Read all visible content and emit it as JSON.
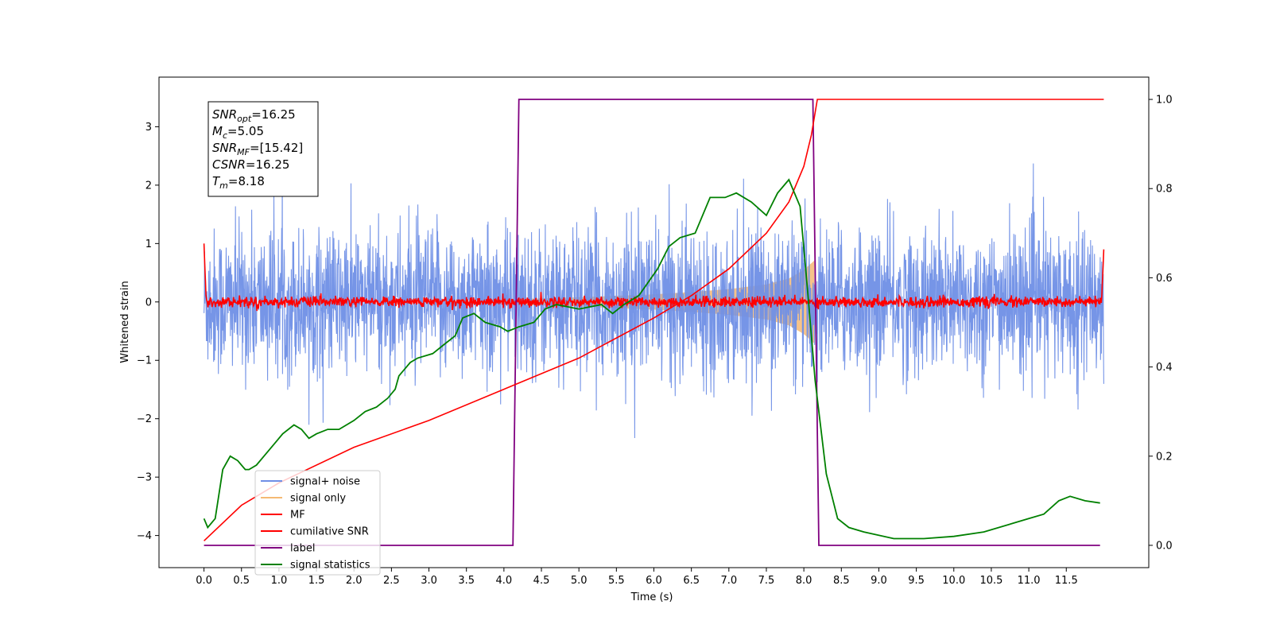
{
  "chart_data": {
    "type": "line",
    "title": "",
    "xlabel": "Time (s)",
    "ylabel": "Whitened strain",
    "xlim": [
      -0.6,
      12.6
    ],
    "ylim": [
      -4.55,
      3.85
    ],
    "y2lim": [
      -0.05,
      1.05
    ],
    "xticks": [
      "0.0",
      "0.5",
      "1.0",
      "1.5",
      "2.0",
      "2.5",
      "3.0",
      "3.5",
      "4.0",
      "4.5",
      "5.0",
      "5.5",
      "6.0",
      "6.5",
      "7.0",
      "7.5",
      "8.0",
      "8.5",
      "9.0",
      "9.5",
      "10.0",
      "10.5",
      "11.0",
      "11.5"
    ],
    "yticks": [
      "3",
      "2",
      "1",
      "0",
      "−1",
      "−2",
      "−3",
      "−4"
    ],
    "y2ticks": [
      "1.0",
      "0.8",
      "0.6",
      "0.4",
      "0.2",
      "0.0"
    ],
    "legend_position": "lower-left",
    "grid": false,
    "series": [
      {
        "name": "signal+ noise",
        "axis": "left",
        "color": "#6f8fe6",
        "description": "dense gaussian noise, std about 0.6, t 0.0 to 12.0, spikes to 3.5 and -4.1"
      },
      {
        "name": "signal only",
        "axis": "left",
        "color": "#f5b974",
        "description": "chirp band growing from 0.05 at 4.2 s to 0.7 at 8.15 s",
        "x": [
          4.2,
          5.0,
          6.0,
          6.5,
          7.0,
          7.5,
          7.8,
          8.0,
          8.15
        ],
        "envelope": [
          0.05,
          0.08,
          0.13,
          0.17,
          0.22,
          0.3,
          0.4,
          0.55,
          0.72
        ]
      },
      {
        "name": "MF",
        "axis": "left",
        "color": "#ff0000",
        "description": "noise around 0, std about 0.05, edge spike to 1.0 at 0 s and 0.9 at 12 s"
      },
      {
        "name": "cumilative SNR",
        "axis": "right",
        "color": "#ff0000",
        "x": [
          0.0,
          0.5,
          1.0,
          2.0,
          3.0,
          4.0,
          5.0,
          6.0,
          6.5,
          7.0,
          7.5,
          7.8,
          8.0,
          8.1,
          8.18,
          12.0
        ],
        "y": [
          0.01,
          0.09,
          0.14,
          0.22,
          0.28,
          0.35,
          0.42,
          0.51,
          0.56,
          0.62,
          0.7,
          0.77,
          0.85,
          0.92,
          1.0,
          1.0
        ]
      },
      {
        "name": "label",
        "axis": "right",
        "color": "#800080",
        "x": [
          0.0,
          4.12,
          4.2,
          8.12,
          8.2,
          11.95
        ],
        "y": [
          0.0,
          0.0,
          1.0,
          1.0,
          0.0,
          0.0
        ]
      },
      {
        "name": "signal statistics",
        "axis": "right",
        "color": "#008000",
        "x": [
          0.0,
          0.05,
          0.15,
          0.25,
          0.35,
          0.45,
          0.55,
          0.6,
          0.7,
          0.8,
          0.95,
          1.05,
          1.2,
          1.3,
          1.4,
          1.5,
          1.65,
          1.8,
          2.0,
          2.15,
          2.3,
          2.45,
          2.55,
          2.6,
          2.75,
          2.85,
          3.05,
          3.2,
          3.35,
          3.45,
          3.6,
          3.75,
          3.95,
          4.05,
          4.2,
          4.4,
          4.55,
          4.7,
          5.0,
          5.3,
          5.45,
          5.6,
          5.8,
          6.05,
          6.2,
          6.35,
          6.55,
          6.75,
          6.95,
          7.1,
          7.3,
          7.5,
          7.65,
          7.8,
          7.95,
          8.05,
          8.15,
          8.3,
          8.45,
          8.6,
          8.8,
          9.2,
          9.6,
          10.0,
          10.4,
          10.8,
          11.0,
          11.2,
          11.4,
          11.55,
          11.75,
          11.95
        ],
        "y": [
          0.06,
          0.04,
          0.06,
          0.17,
          0.2,
          0.19,
          0.17,
          0.17,
          0.18,
          0.2,
          0.23,
          0.25,
          0.27,
          0.26,
          0.24,
          0.25,
          0.26,
          0.26,
          0.28,
          0.3,
          0.31,
          0.33,
          0.35,
          0.38,
          0.41,
          0.42,
          0.43,
          0.45,
          0.47,
          0.51,
          0.52,
          0.5,
          0.49,
          0.48,
          0.49,
          0.5,
          0.53,
          0.54,
          0.53,
          0.54,
          0.52,
          0.54,
          0.56,
          0.62,
          0.67,
          0.69,
          0.7,
          0.78,
          0.78,
          0.79,
          0.77,
          0.74,
          0.79,
          0.82,
          0.76,
          0.57,
          0.37,
          0.16,
          0.06,
          0.04,
          0.03,
          0.015,
          0.015,
          0.02,
          0.03,
          0.05,
          0.06,
          0.07,
          0.1,
          0.11,
          0.1,
          0.095
        ]
      }
    ],
    "annotations": {
      "info_box": [
        {
          "main": "SNR",
          "sub": "opt",
          "value": "=16.25"
        },
        {
          "main": "M",
          "sub": "c",
          "value": "=5.05"
        },
        {
          "main": "SNR",
          "sub": "MF",
          "value": "=[15.42]"
        },
        {
          "main": "CSNR",
          "sub": "",
          "value": "=16.25"
        },
        {
          "main": "T",
          "sub": "m",
          "value": "=8.18"
        }
      ]
    }
  }
}
